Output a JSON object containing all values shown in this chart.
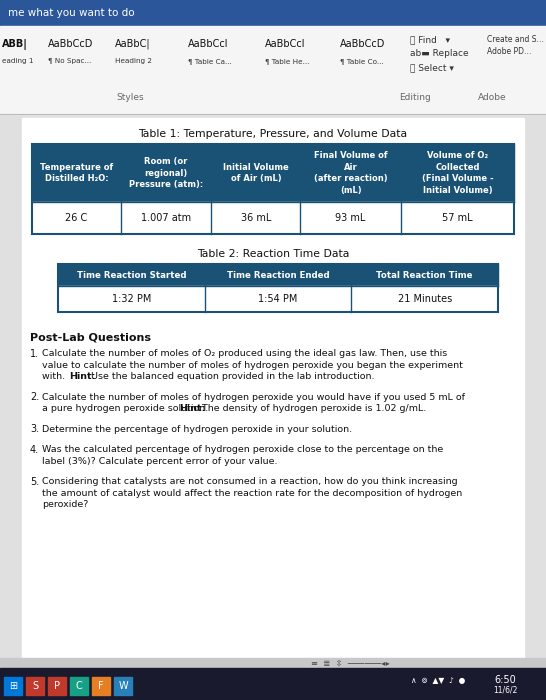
{
  "bg_color": "#d0d0d0",
  "toolbar_color": "#2b579a",
  "toolbar_text": "me what you want to do",
  "ribbon_bg": "#f5f5f5",
  "ribbon_items": [
    "ABB|",
    "AaBbCcD",
    "AaBbC|",
    "AaBbCcl",
    "AaBbCcl",
    "AaBbCcD"
  ],
  "ribbon_sub": [
    "eading 1",
    "¶ No Spac...",
    "Heading 2",
    "¶ Table Ca...",
    "¶ Table He...",
    "¶ Table Co..."
  ],
  "table1_title": "Table 1: Temperature, Pressure, and Volume Data",
  "table1_header": [
    "Temperature of\nDistilled H₂O:",
    "Room (or\nregional)\nPressure (atm):",
    "Initial Volume\nof Air (mL)",
    "Final Volume of\nAir\n(after reaction)\n(mL)",
    "Volume of O₂\nCollected\n(Final Volume -\nInitial Volume)"
  ],
  "table1_data": [
    "26 C",
    "1.007 atm",
    "36 mL",
    "93 mL",
    "57 mL"
  ],
  "table1_header_bg": "#1a5276",
  "table1_header_fg": "#ffffff",
  "table1_data_bg": "#ffffff",
  "table1_border": "#1a5276",
  "table2_title": "Table 2: Reaction Time Data",
  "table2_header": [
    "Time Reaction Started",
    "Time Reaction Ended",
    "Total Reaction Time"
  ],
  "table2_data": [
    "1:32 PM",
    "1:54 PM",
    "21 Minutes"
  ],
  "table2_header_bg": "#1a5276",
  "table2_header_fg": "#ffffff",
  "table2_data_bg": "#ffffff",
  "table2_border": "#1a5276",
  "postlab_title": "Post-Lab Questions",
  "questions": [
    "Calculate the number of moles of O₂ produced using the ideal gas law. Then, use this\nvalue to calculate the number of moles of hydrogen peroxide you began the experiment\nwith.  Hint: Use the balanced equation provided in the lab introduction.",
    "Calculate the number of moles of hydrogen peroxide you would have if you used 5 mL of\na pure hydrogen peroxide solution.  Hint: The density of hydrogen peroxide is 1.02 g/mL.",
    "Determine the percentage of hydrogen peroxide in your solution.",
    "Was the calculated percentage of hydrogen peroxide close to the percentage on the\nlabel (3%)? Calculate percent error of your value.",
    "Considering that catalysts are not consumed in a reaction, how do you think increasing\nthe amount of catalyst would affect the reaction rate for the decomposition of hydrogen\nperoxide?"
  ],
  "page_bg": "#ffffff",
  "content_bg": "#e0e0e0"
}
